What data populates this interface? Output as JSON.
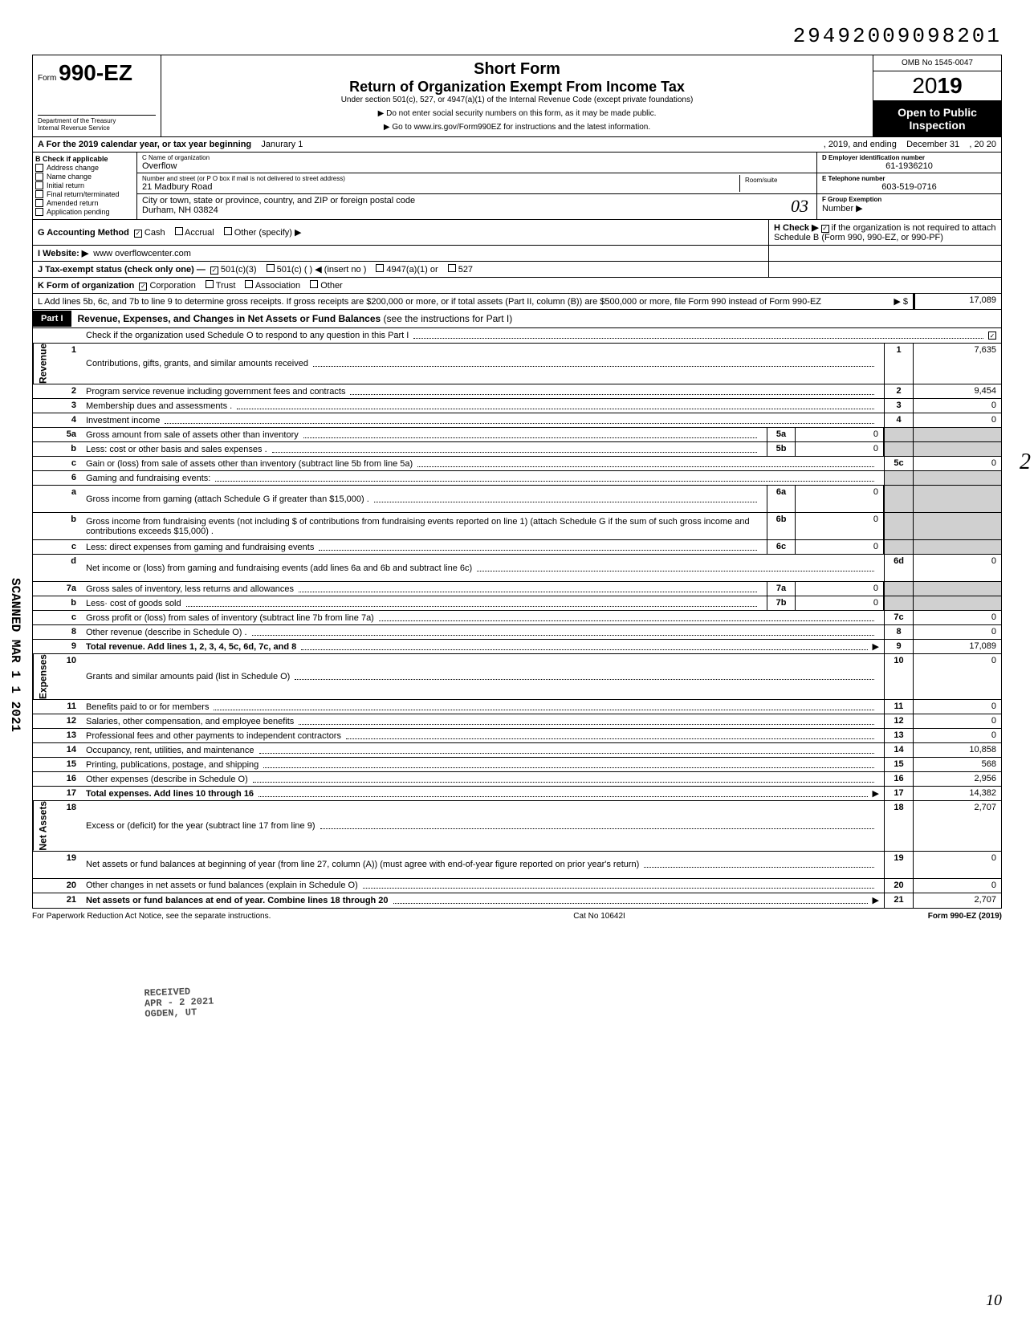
{
  "doc_id": "29492009098201",
  "header": {
    "form_prefix": "Form",
    "form_number": "990-EZ",
    "dept1": "Department of the Treasury",
    "dept2": "Internal Revenue Service",
    "title1": "Short Form",
    "title2": "Return of Organization Exempt From Income Tax",
    "subtitle": "Under section 501(c), 527, or 4947(a)(1) of the Internal Revenue Code (except private foundations)",
    "note1": "▶ Do not enter social security numbers on this form, as it may be made public.",
    "note2": "▶ Go to www.irs.gov/Form990EZ for instructions and the latest information.",
    "omb": "OMB No 1545-0047",
    "year": "2019",
    "open1": "Open to Public",
    "open2": "Inspection"
  },
  "rowA": {
    "label": "A For the 2019 calendar year, or tax year beginning",
    "begin": "Janurary 1",
    "mid": ", 2019, and ending",
    "end_month": "December 31",
    "end_year": ", 20   20"
  },
  "colB": {
    "header": "B Check if applicable",
    "items": [
      "Address change",
      "Name change",
      "Initial return",
      "Final return/terminated",
      "Amended return",
      "Application pending"
    ]
  },
  "colC": {
    "name_lbl": "C Name of organization",
    "name_val": "Overflow",
    "addr_lbl": "Number and street (or P O  box if mail is not delivered to street address)",
    "addr_val": "21 Madbury Road",
    "room_lbl": "Room/suite",
    "room_val": "",
    "city_lbl": "City or town, state or province, country, and ZIP or foreign postal code",
    "city_val": "Durham, NH  03824",
    "city_hand": "03"
  },
  "colDEF": {
    "D_lbl": "D Employer identification number",
    "D_val": "61-1936210",
    "E_lbl": "E Telephone number",
    "E_val": "603-519-0716",
    "F_lbl": "F Group Exemption",
    "F_lbl2": "Number ▶",
    "F_val": ""
  },
  "rowsGIJKL": {
    "G": {
      "lbl": "G Accounting Method",
      "opts": [
        "Cash",
        "Accrual",
        "Other (specify) ▶"
      ],
      "checked": 0
    },
    "H": {
      "lbl": "H Check ▶",
      "txt": "if the organization is not required to attach Schedule B (Form 990, 990-EZ, or 990-PF)",
      "checked": true
    },
    "I": {
      "lbl": "I Website: ▶",
      "val": "www overflowcenter.com"
    },
    "J": {
      "lbl": "J Tax-exempt status (check only one) —",
      "opts": [
        "501(c)(3)",
        "501(c) (          ) ◀ (insert no )",
        "4947(a)(1) or",
        "527"
      ],
      "checked": 0
    },
    "K": {
      "lbl": "K Form of organization",
      "opts": [
        "Corporation",
        "Trust",
        "Association",
        "Other"
      ],
      "checked": 0
    },
    "L": {
      "txt": "L Add lines 5b, 6c, and 7b to line 9 to determine gross receipts. If gross receipts are $200,000 or more, or if total assets (Part II, column (B)) are $500,000 or more, file Form 990 instead of Form 990-EZ",
      "arrow": "▶ $",
      "val": "17,089"
    }
  },
  "part1": {
    "tag": "Part I",
    "title": "Revenue, Expenses, and Changes in Net Assets or Fund Balances",
    "title_thin": "(see the instructions for Part I)",
    "check_line": "Check if the organization used Schedule O to respond to any question in this Part I",
    "check_checked": true
  },
  "sections": [
    {
      "label": "Revenue",
      "rows": [
        {
          "no": "1",
          "txt": "Contributions, gifts, grants, and similar amounts received",
          "end_no": "1",
          "end_val": "7,635"
        },
        {
          "no": "2",
          "txt": "Program service revenue including government fees and contracts",
          "end_no": "2",
          "end_val": "9,454"
        },
        {
          "no": "3",
          "txt": "Membership dues and assessments .",
          "end_no": "3",
          "end_val": "0"
        },
        {
          "no": "4",
          "txt": "Investment income",
          "end_no": "4",
          "end_val": "0"
        },
        {
          "no": "5a",
          "txt": "Gross amount from sale of assets other than inventory",
          "mid_no": "5a",
          "mid_val": "0",
          "shade": true
        },
        {
          "no": "b",
          "txt": "Less: cost or other basis and sales expenses .",
          "mid_no": "5b",
          "mid_val": "0",
          "shade": true
        },
        {
          "no": "c",
          "txt": "Gain or (loss) from sale of assets other than inventory (subtract line 5b from line 5a)",
          "end_no": "5c",
          "end_val": "0"
        },
        {
          "no": "6",
          "txt": "Gaming and fundraising events:",
          "shade": true
        },
        {
          "no": "a",
          "txt": "Gross income from gaming (attach Schedule G if greater than $15,000) .",
          "mid_no": "6a",
          "mid_val": "0",
          "shade": true,
          "tall": true
        },
        {
          "no": "b",
          "txt": "Gross income from fundraising events (not including  $                      of contributions from fundraising events reported on line 1) (attach Schedule G if the sum of such gross income and contributions exceeds $15,000) .",
          "mid_no": "6b",
          "mid_val": "0",
          "shade": true,
          "tall": true
        },
        {
          "no": "c",
          "txt": "Less: direct expenses from gaming and fundraising events",
          "mid_no": "6c",
          "mid_val": "0",
          "shade": true
        },
        {
          "no": "d",
          "txt": "Net income or (loss) from gaming and fundraising events (add lines 6a and 6b and subtract line 6c)",
          "end_no": "6d",
          "end_val": "0",
          "tall": true
        },
        {
          "no": "7a",
          "txt": "Gross sales of inventory, less returns and allowances",
          "mid_no": "7a",
          "mid_val": "0",
          "shade": true
        },
        {
          "no": "b",
          "txt": "Less· cost of goods sold",
          "mid_no": "7b",
          "mid_val": "0",
          "shade": true
        },
        {
          "no": "c",
          "txt": "Gross profit or (loss) from sales of inventory (subtract line 7b from line 7a)",
          "end_no": "7c",
          "end_val": "0"
        },
        {
          "no": "8",
          "txt": "Other revenue (describe in Schedule O) .",
          "end_no": "8",
          "end_val": "0"
        },
        {
          "no": "9",
          "txt": "Total revenue. Add lines 1, 2, 3, 4, 5c, 6d, 7c, and 8",
          "end_no": "9",
          "end_val": "17,089",
          "bold": true,
          "arrow": true
        }
      ]
    },
    {
      "label": "Expenses",
      "rows": [
        {
          "no": "10",
          "txt": "Grants and similar amounts paid (list in Schedule O)",
          "end_no": "10",
          "end_val": "0"
        },
        {
          "no": "11",
          "txt": "Benefits paid to or for members",
          "end_no": "11",
          "end_val": "0"
        },
        {
          "no": "12",
          "txt": "Salaries, other compensation, and employee benefits",
          "end_no": "12",
          "end_val": "0"
        },
        {
          "no": "13",
          "txt": "Professional fees and other payments to independent contractors",
          "end_no": "13",
          "end_val": "0"
        },
        {
          "no": "14",
          "txt": "Occupancy, rent, utilities, and maintenance",
          "end_no": "14",
          "end_val": "10,858"
        },
        {
          "no": "15",
          "txt": "Printing, publications, postage, and shipping",
          "end_no": "15",
          "end_val": "568"
        },
        {
          "no": "16",
          "txt": "Other expenses (describe in Schedule O)",
          "end_no": "16",
          "end_val": "2,956"
        },
        {
          "no": "17",
          "txt": "Total expenses. Add lines 10 through 16",
          "end_no": "17",
          "end_val": "14,382",
          "bold": true,
          "arrow": true
        }
      ]
    },
    {
      "label": "Net Assets",
      "rows": [
        {
          "no": "18",
          "txt": "Excess or (deficit) for the year (subtract line 17 from line 9)",
          "end_no": "18",
          "end_val": "2,707"
        },
        {
          "no": "19",
          "txt": "Net assets or fund balances at beginning of year (from line 27, column (A)) (must agree with end-of-year figure reported on prior year's return)",
          "end_no": "19",
          "end_val": "0",
          "tall": true
        },
        {
          "no": "20",
          "txt": "Other changes in net assets or fund balances (explain in Schedule O)",
          "end_no": "20",
          "end_val": "0"
        },
        {
          "no": "21",
          "txt": "Net assets or fund balances at end of year. Combine lines 18 through 20",
          "end_no": "21",
          "end_val": "2,707",
          "bold": true,
          "arrow": true
        }
      ]
    }
  ],
  "footer": {
    "left": "For Paperwork Reduction Act Notice, see the separate instructions.",
    "mid": "Cat No 10642I",
    "right": "Form 990-EZ (2019)"
  },
  "scanned": "SCANNED MAR 1 1 2021",
  "stamp": "RECEIVED\nAPR - 2 2021\nOGDEN, UT",
  "hand": "10",
  "hand2": "2"
}
